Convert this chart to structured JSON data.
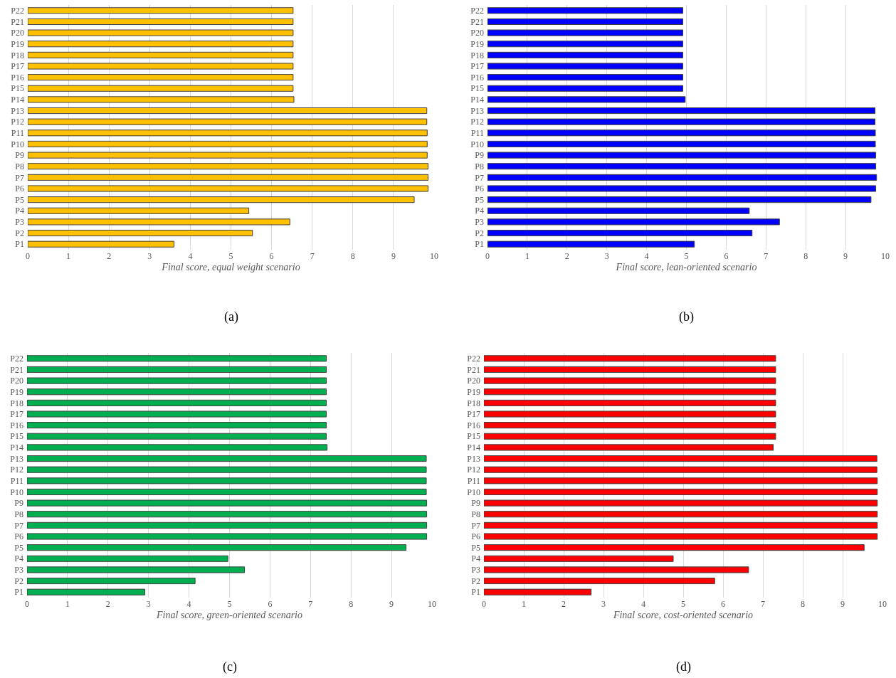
{
  "chart_data": [
    {
      "type": "bar",
      "orientation": "horizontal",
      "categories": [
        "P22",
        "P21",
        "P20",
        "P19",
        "P18",
        "P17",
        "P16",
        "P15",
        "P14",
        "P13",
        "P12",
        "P11",
        "P10",
        "P9",
        "P8",
        "P7",
        "P6",
        "P5",
        "P4",
        "P3",
        "P2",
        "P1"
      ],
      "values": [
        6.53,
        6.53,
        6.53,
        6.53,
        6.53,
        6.53,
        6.53,
        6.53,
        6.55,
        9.82,
        9.82,
        9.83,
        9.83,
        9.83,
        9.85,
        9.85,
        9.85,
        9.51,
        5.44,
        6.45,
        5.53,
        3.6
      ],
      "color": "#ffc000",
      "xlim": [
        0,
        10
      ],
      "xticks": [
        0,
        1,
        2,
        3,
        4,
        5,
        6,
        7,
        8,
        9,
        10
      ],
      "xlabel": "Final score, equal weight scenario",
      "grid": "x",
      "annotations": [
        "(a)"
      ]
    },
    {
      "type": "bar",
      "orientation": "horizontal",
      "categories": [
        "P22",
        "P21",
        "P20",
        "P19",
        "P18",
        "P17",
        "P16",
        "P15",
        "P14",
        "P13",
        "P12",
        "P11",
        "P10",
        "P9",
        "P8",
        "P7",
        "P6",
        "P5",
        "P4",
        "P3",
        "P2",
        "P1"
      ],
      "values": [
        4.91,
        4.91,
        4.91,
        4.91,
        4.91,
        4.91,
        4.91,
        4.91,
        4.97,
        9.74,
        9.74,
        9.75,
        9.75,
        9.76,
        9.76,
        9.78,
        9.76,
        9.64,
        6.58,
        7.34,
        6.65,
        5.2
      ],
      "color": "#0000ff",
      "xlim": [
        0,
        10
      ],
      "xticks": [
        0,
        1,
        2,
        3,
        4,
        5,
        6,
        7,
        8,
        9,
        10
      ],
      "xlabel": "Final score, lean-oriented scenario",
      "grid": "x",
      "annotations": [
        "(b)"
      ]
    },
    {
      "type": "bar",
      "orientation": "horizontal",
      "categories": [
        "P22",
        "P21",
        "P20",
        "P19",
        "P18",
        "P17",
        "P16",
        "P15",
        "P14",
        "P13",
        "P12",
        "P11",
        "P10",
        "P9",
        "P8",
        "P7",
        "P6",
        "P5",
        "P4",
        "P3",
        "P2",
        "P1"
      ],
      "values": [
        7.39,
        7.39,
        7.39,
        7.39,
        7.39,
        7.39,
        7.39,
        7.39,
        7.41,
        9.86,
        9.86,
        9.86,
        9.86,
        9.87,
        9.87,
        9.87,
        9.87,
        9.36,
        4.96,
        5.37,
        4.15,
        2.91
      ],
      "color": "#00b050",
      "xlim": [
        0,
        10
      ],
      "xticks": [
        0,
        1,
        2,
        3,
        4,
        5,
        6,
        7,
        8,
        9,
        10
      ],
      "xlabel": "Final score, green-oriented scenario",
      "grid": "x",
      "annotations": [
        "(c)"
      ]
    },
    {
      "type": "bar",
      "orientation": "horizontal",
      "categories": [
        "P22",
        "P21",
        "P20",
        "P19",
        "P18",
        "P17",
        "P16",
        "P15",
        "P14",
        "P13",
        "P12",
        "P11",
        "P10",
        "P9",
        "P8",
        "P7",
        "P6",
        "P5",
        "P4",
        "P3",
        "P2",
        "P1"
      ],
      "values": [
        7.32,
        7.32,
        7.32,
        7.32,
        7.32,
        7.32,
        7.32,
        7.32,
        7.26,
        9.86,
        9.86,
        9.87,
        9.87,
        9.87,
        9.87,
        9.87,
        9.87,
        9.54,
        4.75,
        6.64,
        5.79,
        2.69
      ],
      "color": "#ff0000",
      "xlim": [
        0,
        10
      ],
      "xticks": [
        0,
        1,
        2,
        3,
        4,
        5,
        6,
        7,
        8,
        9,
        10
      ],
      "xlabel": "Final score, cost-oriented scenario",
      "grid": "x",
      "annotations": [
        "(d)"
      ]
    }
  ]
}
